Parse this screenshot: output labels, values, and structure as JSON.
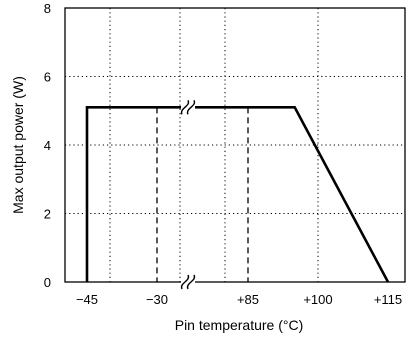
{
  "chart_data": {
    "type": "line",
    "title": "",
    "xlabel": "Pin temperature (°C)",
    "ylabel": "Max output power (W)",
    "x_tick_labels": [
      "−45",
      "−30",
      "+85",
      "+100",
      "+115"
    ],
    "y_ticks": [
      0,
      2,
      4,
      6,
      8
    ],
    "ylim": [
      0,
      8
    ],
    "grid": "dotted",
    "axis_break": "between −30 and +85",
    "series": [
      {
        "points": [
          {
            "x": -45,
            "y": 0
          },
          {
            "x": -45,
            "y": 5.1
          },
          {
            "x": 95,
            "y": 5.1
          },
          {
            "x": 115,
            "y": 0
          }
        ]
      }
    ],
    "reference_lines": [
      {
        "x": -30,
        "style": "dashed"
      },
      {
        "x": 85,
        "style": "dashed"
      }
    ]
  }
}
